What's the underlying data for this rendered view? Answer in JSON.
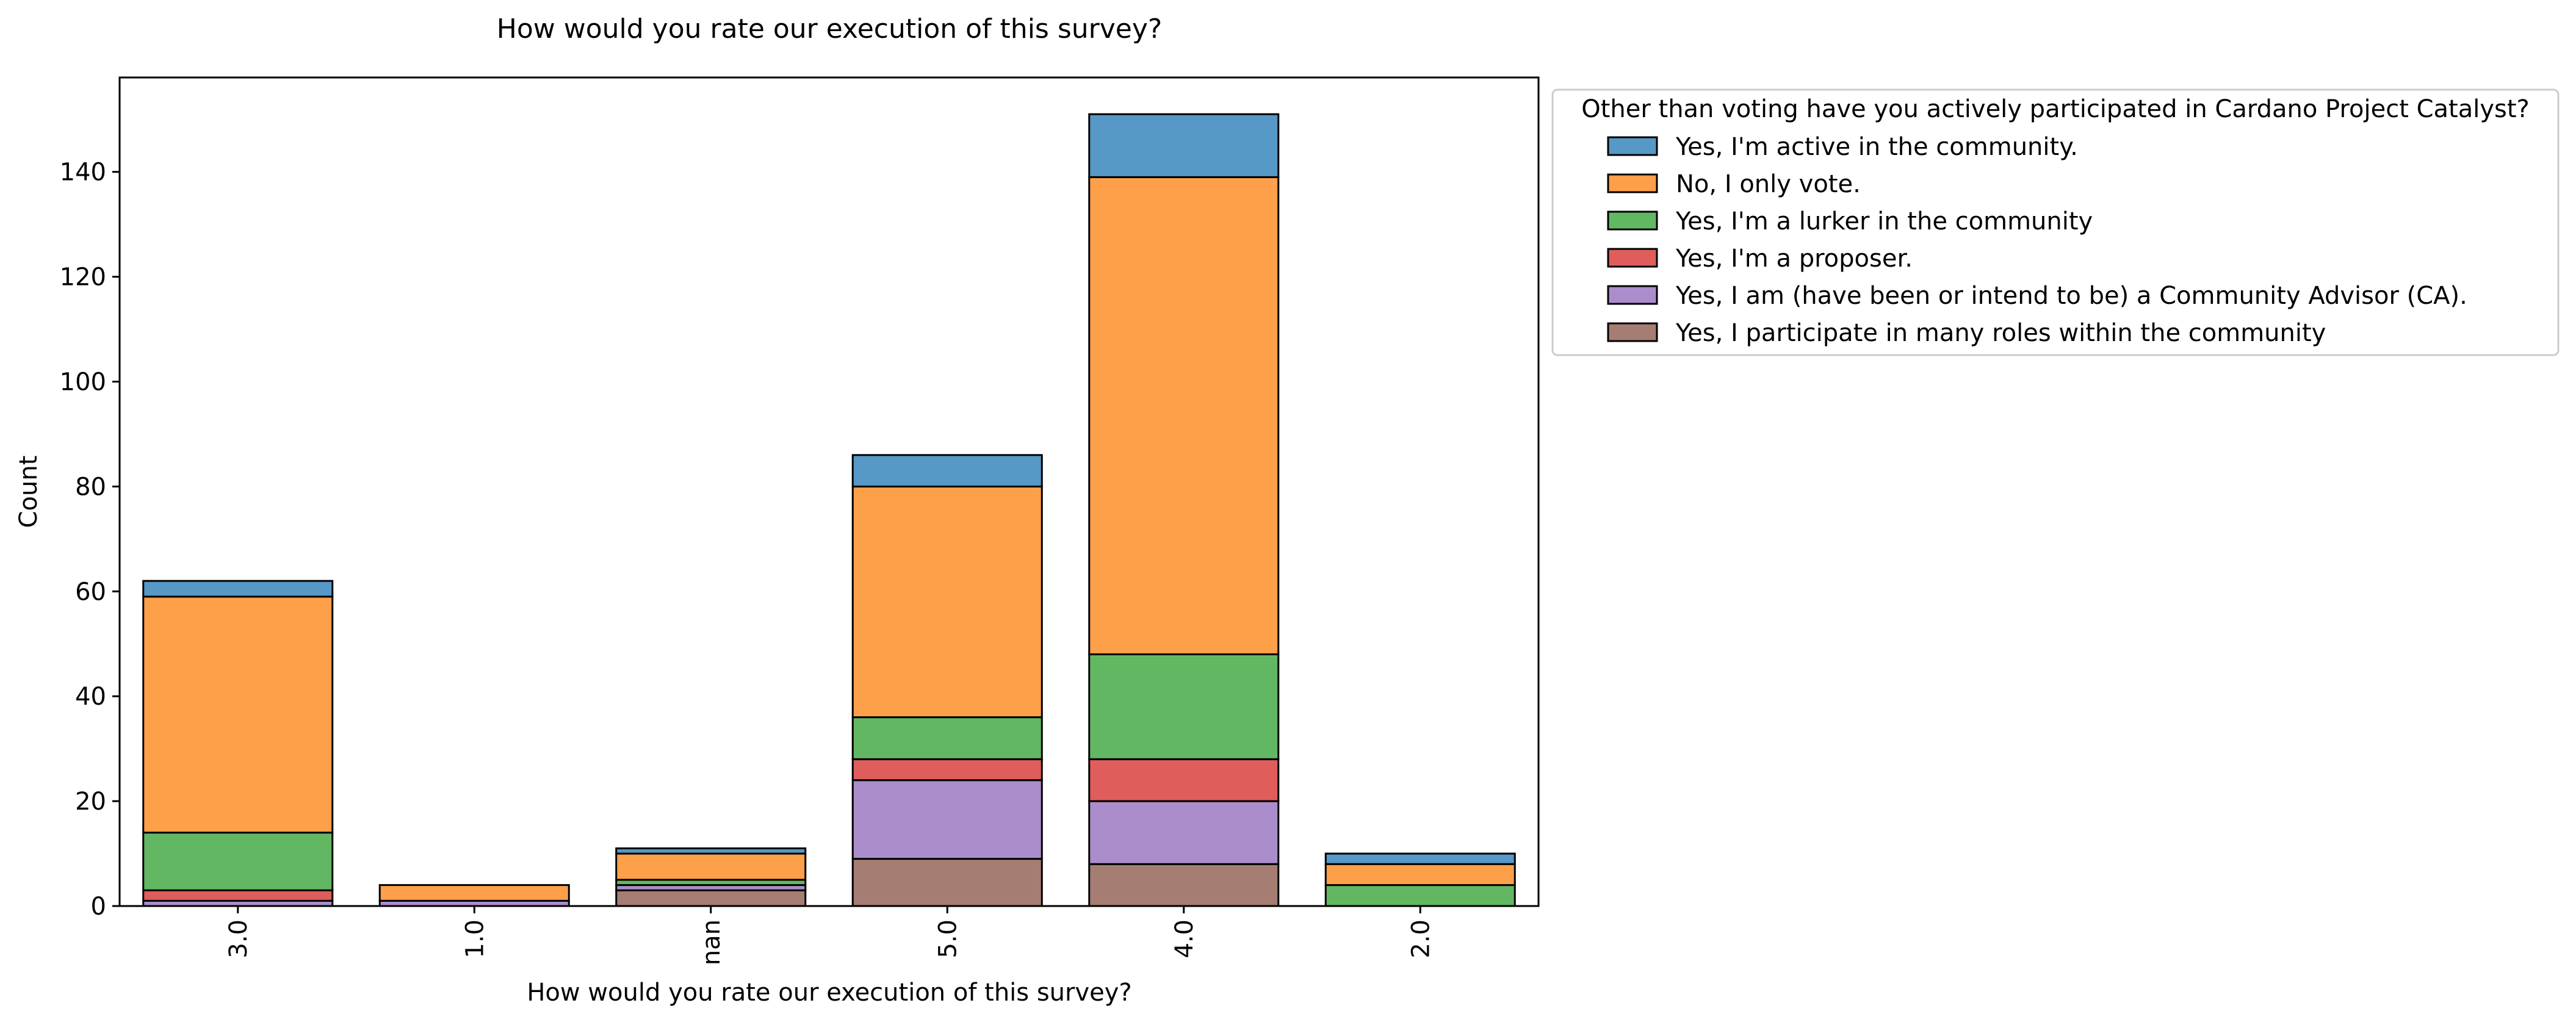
{
  "chart_data": {
    "type": "bar",
    "stacked": true,
    "title": "How would you rate our execution of this survey?",
    "xlabel": "How would you rate our execution of this survey?",
    "ylabel": "Count",
    "categories": [
      "3.0",
      "1.0",
      "nan",
      "5.0",
      "4.0",
      "2.0"
    ],
    "ylim": [
      0,
      158
    ],
    "yticks": [
      0,
      20,
      40,
      60,
      80,
      100,
      120,
      140
    ],
    "grid": false,
    "legend": {
      "title": "Other than voting have you actively participated in Cardano Project Catalyst?",
      "placement": "outside-top-right"
    },
    "series": [
      {
        "name": "Yes, I participate in many roles within the community",
        "color": "#a57d72",
        "values": [
          0,
          0,
          3,
          9,
          8,
          0
        ]
      },
      {
        "name": "Yes, I am (have been or intend to be) a Community Advisor (CA).",
        "color": "#ab8dcb",
        "values": [
          1,
          1,
          1,
          15,
          12,
          0
        ]
      },
      {
        "name": "Yes, I'm a proposer.",
        "color": "#df5d5b",
        "values": [
          2,
          0,
          0,
          4,
          8,
          0
        ]
      },
      {
        "name": "Yes, I'm a lurker in the community",
        "color": "#62b862",
        "values": [
          11,
          0,
          1,
          8,
          20,
          4
        ]
      },
      {
        "name": "No, I only vote.",
        "color": "#fe9f4a",
        "values": [
          45,
          3,
          5,
          44,
          91,
          4
        ]
      },
      {
        "name": "Yes, I'm active in the community.",
        "color": "#5698c6",
        "values": [
          3,
          0,
          1,
          6,
          12,
          2
        ]
      }
    ],
    "legend_order": [
      5,
      4,
      3,
      2,
      1,
      0
    ]
  }
}
